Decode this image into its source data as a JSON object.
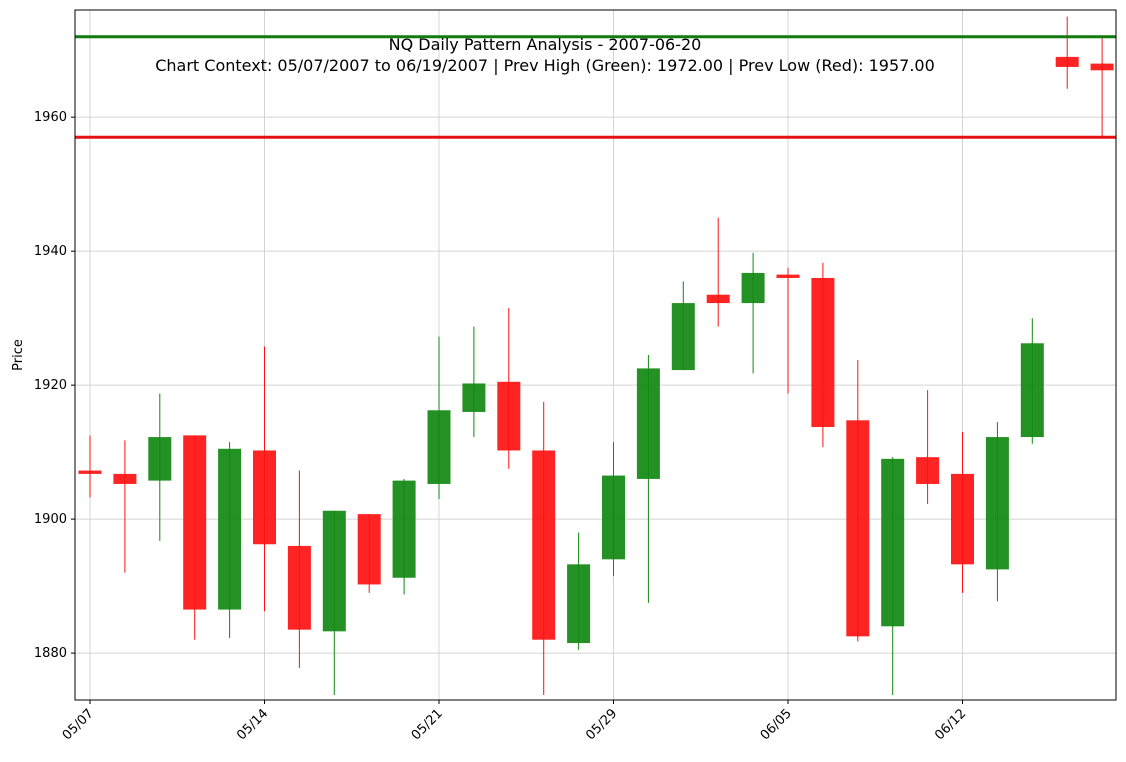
{
  "chart_data": {
    "type": "candlestick",
    "title": "NQ Daily Pattern Analysis - 2007-06-20",
    "subtitle": "Chart Context: 05/07/2007 to 06/19/2007 | Prev High (Green): 1972.00 | Prev Low (Red): 1957.00",
    "xlabel": "",
    "ylabel": "Price",
    "ylim": [
      1873,
      1976
    ],
    "yticks": [
      1880,
      1900,
      1920,
      1940,
      1960
    ],
    "xticks": [
      {
        "label": "05/07",
        "index": 0
      },
      {
        "label": "05/14",
        "index": 5
      },
      {
        "label": "05/21",
        "index": 10
      },
      {
        "label": "05/29",
        "index": 15
      },
      {
        "label": "06/05",
        "index": 20
      },
      {
        "label": "06/12",
        "index": 25
      }
    ],
    "grid": true,
    "up_color": "#118811",
    "down_color": "#ff1111",
    "candles": [
      {
        "open": 1907.25,
        "high": 1912.5,
        "low": 1903.25,
        "close": 1906.75
      },
      {
        "open": 1906.75,
        "high": 1911.75,
        "low": 1892.0,
        "close": 1905.25
      },
      {
        "open": 1905.75,
        "high": 1918.75,
        "low": 1896.75,
        "close": 1912.25
      },
      {
        "open": 1912.5,
        "high": 1912.5,
        "low": 1882.0,
        "close": 1886.5
      },
      {
        "open": 1886.5,
        "high": 1911.5,
        "low": 1882.25,
        "close": 1910.5
      },
      {
        "open": 1910.25,
        "high": 1925.75,
        "low": 1886.25,
        "close": 1896.25
      },
      {
        "open": 1896.0,
        "high": 1907.25,
        "low": 1877.75,
        "close": 1883.5
      },
      {
        "open": 1883.25,
        "high": 1901.25,
        "low": 1873.75,
        "close": 1901.25
      },
      {
        "open": 1900.75,
        "high": 1900.75,
        "low": 1889.0,
        "close": 1890.25
      },
      {
        "open": 1891.25,
        "high": 1906.0,
        "low": 1888.75,
        "close": 1905.75
      },
      {
        "open": 1905.25,
        "high": 1927.25,
        "low": 1903.0,
        "close": 1916.25
      },
      {
        "open": 1916.0,
        "high": 1928.75,
        "low": 1912.25,
        "close": 1920.25
      },
      {
        "open": 1920.5,
        "high": 1931.5,
        "low": 1907.5,
        "close": 1910.25
      },
      {
        "open": 1910.25,
        "high": 1917.5,
        "low": 1873.75,
        "close": 1882.0
      },
      {
        "open": 1881.5,
        "high": 1898.0,
        "low": 1880.5,
        "close": 1893.25
      },
      {
        "open": 1894.0,
        "high": 1911.5,
        "low": 1891.5,
        "close": 1906.5
      },
      {
        "open": 1906.0,
        "high": 1924.5,
        "low": 1887.5,
        "close": 1922.5
      },
      {
        "open": 1922.25,
        "high": 1935.5,
        "low": 1922.25,
        "close": 1932.25
      },
      {
        "open": 1933.5,
        "high": 1945.0,
        "low": 1928.75,
        "close": 1932.25
      },
      {
        "open": 1932.25,
        "high": 1939.75,
        "low": 1921.75,
        "close": 1936.75
      },
      {
        "open": 1936.5,
        "high": 1937.5,
        "low": 1918.75,
        "close": 1936.0
      },
      {
        "open": 1936.0,
        "high": 1938.25,
        "low": 1910.75,
        "close": 1913.75
      },
      {
        "open": 1914.75,
        "high": 1923.75,
        "low": 1881.75,
        "close": 1882.5
      },
      {
        "open": 1884.0,
        "high": 1909.25,
        "low": 1873.75,
        "close": 1909.0
      },
      {
        "open": 1909.25,
        "high": 1919.25,
        "low": 1902.25,
        "close": 1905.25
      },
      {
        "open": 1906.75,
        "high": 1913.0,
        "low": 1889.0,
        "close": 1893.25
      },
      {
        "open": 1892.5,
        "high": 1914.5,
        "low": 1887.75,
        "close": 1912.25
      },
      {
        "open": 1912.25,
        "high": 1930.0,
        "low": 1911.25,
        "close": 1926.25
      },
      {
        "open": 1969.0,
        "high": 1975.0,
        "low": 1964.25,
        "close": 1967.5
      },
      {
        "open": 1968.0,
        "high": 1972.0,
        "low": 1957.0,
        "close": 1967.0
      }
    ],
    "reference_lines": [
      {
        "name": "Prev High",
        "value": 1972.0,
        "color": "#117a11"
      },
      {
        "name": "Prev Low",
        "value": 1957.0,
        "color": "#e61111"
      }
    ]
  }
}
